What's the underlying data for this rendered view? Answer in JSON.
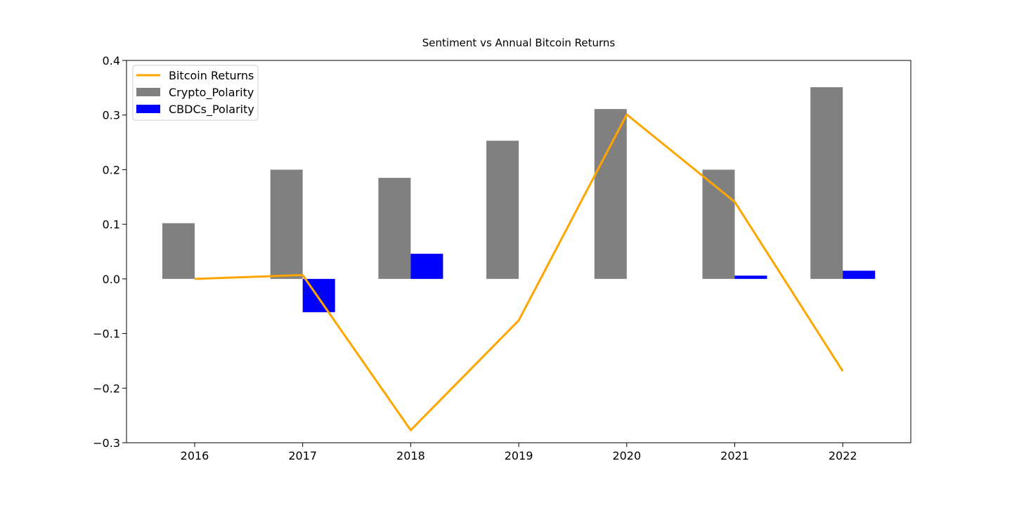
{
  "chart_data": {
    "type": "bar",
    "title": "Sentiment vs Annual Bitcoin Returns",
    "xlabel": "",
    "ylabel": "",
    "categories": [
      "2016",
      "2017",
      "2018",
      "2019",
      "2020",
      "2021",
      "2022"
    ],
    "ylim": [
      -0.3,
      0.4
    ],
    "yticks": [
      -0.3,
      -0.2,
      -0.1,
      0.0,
      0.1,
      0.2,
      0.3,
      0.4
    ],
    "ytick_labels": [
      "−0.3",
      "−0.2",
      "−0.1",
      "0.0",
      "0.1",
      "0.2",
      "0.3",
      "0.4"
    ],
    "grid": false,
    "legend_position": "top-left",
    "series": [
      {
        "name": "Bitcoin Returns",
        "kind": "line",
        "color": "#ffa500",
        "values": [
          0.0,
          0.007,
          -0.277,
          -0.076,
          0.301,
          0.141,
          -0.169
        ]
      },
      {
        "name": "Crypto_Polarity",
        "kind": "bar",
        "color": "#808080",
        "values": [
          0.102,
          0.2,
          0.185,
          0.253,
          0.311,
          0.2,
          0.351
        ]
      },
      {
        "name": "CBDCs_Polarity",
        "kind": "bar",
        "color": "#0000ff",
        "values": [
          null,
          -0.061,
          0.046,
          null,
          null,
          0.006,
          0.015
        ]
      }
    ]
  }
}
